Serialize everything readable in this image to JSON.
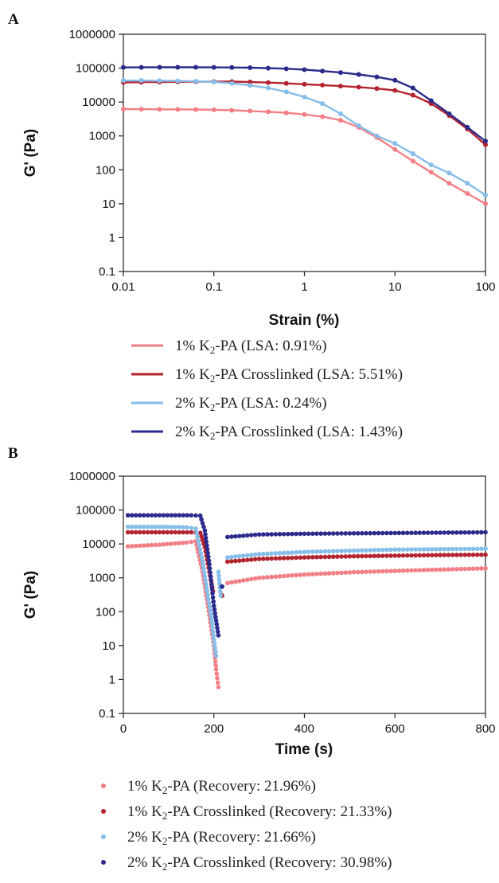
{
  "colors": {
    "s1": "#f27f86",
    "s2": "#b3232e",
    "s3": "#86bde9",
    "s4": "#2b2b8c"
  },
  "chart_data": [
    {
      "panel": "A",
      "type": "line",
      "title": "",
      "xlabel": "Strain (%)",
      "ylabel": "G' (Pa)",
      "xscale": "log",
      "yscale": "log",
      "xlim": [
        0.01,
        100
      ],
      "ylim": [
        0.1,
        1000000
      ],
      "xticks": [
        "0.01",
        "0.1",
        "1",
        "10",
        "100"
      ],
      "yticks": [
        "0.1",
        "1",
        "10",
        "100",
        "1000",
        "10000",
        "100000",
        "1000000"
      ],
      "grid": false,
      "legend_position": "below",
      "series": [
        {
          "key": "s1",
          "legend": {
            "prefix": "1% K",
            "sub": "2",
            "suffix": "-PA (LSA: 0.91%)"
          },
          "x": [
            0.01,
            0.0158,
            0.0251,
            0.0398,
            0.0631,
            0.1,
            0.158,
            0.251,
            0.398,
            0.631,
            1,
            1.58,
            2.51,
            3.98,
            6.31,
            10,
            15.8,
            25.1,
            39.8,
            63.1,
            100
          ],
          "y": [
            6200,
            6150,
            6100,
            6050,
            6000,
            5900,
            5700,
            5450,
            5150,
            4800,
            4300,
            3700,
            2900,
            1800,
            900,
            400,
            180,
            85,
            40,
            20,
            10
          ]
        },
        {
          "key": "s2",
          "legend": {
            "prefix": "1% K",
            "sub": "2",
            "suffix": "-PA Crosslinked (LSA: 5.51%)"
          },
          "x": [
            0.01,
            0.0158,
            0.0251,
            0.0398,
            0.0631,
            0.1,
            0.158,
            0.251,
            0.398,
            0.631,
            1,
            1.58,
            2.51,
            3.98,
            6.31,
            10,
            15.8,
            25.1,
            39.8,
            63.1,
            100
          ],
          "y": [
            38000,
            38500,
            39000,
            39500,
            39800,
            40000,
            40000,
            39000,
            37500,
            35500,
            33500,
            31500,
            29500,
            27500,
            25000,
            22000,
            16000,
            9000,
            4000,
            1600,
            550
          ]
        },
        {
          "key": "s3",
          "legend": {
            "prefix": "2% K",
            "sub": "2",
            "suffix": "-PA (LSA: 0.24%)"
          },
          "x": [
            0.01,
            0.0158,
            0.0251,
            0.0398,
            0.0631,
            0.1,
            0.158,
            0.251,
            0.398,
            0.631,
            1,
            1.58,
            2.51,
            3.98,
            6.31,
            10,
            15.8,
            25.1,
            39.8,
            63.1,
            100
          ],
          "y": [
            43000,
            43000,
            42500,
            42000,
            41000,
            39000,
            35500,
            31000,
            26000,
            20000,
            14000,
            9000,
            4500,
            2000,
            1000,
            600,
            300,
            140,
            80,
            40,
            18
          ]
        },
        {
          "key": "s4",
          "legend": {
            "prefix": "2% K",
            "sub": "2",
            "suffix": "-PA Crosslinked (LSA: 1.43%)"
          },
          "x": [
            0.01,
            0.0158,
            0.0251,
            0.0398,
            0.0631,
            0.1,
            0.158,
            0.251,
            0.398,
            0.631,
            1,
            1.58,
            2.51,
            3.98,
            6.31,
            10,
            15.8,
            25.1,
            39.8,
            63.1,
            100
          ],
          "y": [
            105000,
            105500,
            106000,
            106000,
            106000,
            105500,
            104500,
            103000,
            100000,
            96000,
            90000,
            82000,
            74000,
            65000,
            55000,
            44000,
            26000,
            11000,
            4500,
            1800,
            700
          ]
        }
      ]
    },
    {
      "panel": "B",
      "type": "scatter",
      "title": "",
      "xlabel": "Time (s)",
      "ylabel": "G' (Pa)",
      "xscale": "linear",
      "yscale": "log",
      "xlim": [
        0,
        800
      ],
      "ylim": [
        0.1,
        1000000
      ],
      "xticks": [
        "0",
        "200",
        "400",
        "600",
        "800"
      ],
      "yticks": [
        "0.1",
        "1",
        "10",
        "100",
        "1000",
        "10000",
        "100000",
        "1000000"
      ],
      "grid": false,
      "legend_position": "below",
      "series": [
        {
          "key": "s1",
          "legend": {
            "prefix": "1% K",
            "sub": "2",
            "suffix": "-PA (Recovery: 21.96%)"
          },
          "segments": [
            {
              "x": [
                10,
                80,
                140,
                160
              ],
              "y": [
                8500,
                9500,
                11000,
                12000
              ]
            },
            {
              "x": [
                160,
                175,
                190,
                200,
                205,
                210
              ],
              "y": [
                12000,
                1500,
                80,
                10,
                2,
                0.6
              ]
            },
            {
              "x": [
                230,
                300,
                400,
                500,
                600,
                700,
                800
              ],
              "y": [
                700,
                1000,
                1250,
                1450,
                1600,
                1750,
                1900
              ]
            }
          ]
        },
        {
          "key": "s2",
          "legend": {
            "prefix": "1% K",
            "sub": "2",
            "suffix": "-PA Crosslinked (Recovery: 21.33%)"
          },
          "segments": [
            {
              "x": [
                10,
                80,
                150,
                170
              ],
              "y": [
                22000,
                22000,
                22000,
                21000
              ]
            },
            {
              "x": [
                170,
                180,
                190,
                198
              ],
              "y": [
                21000,
                8000,
                1500,
                400
              ]
            },
            {
              "x": [
                218
              ],
              "y": [
                300
              ]
            },
            {
              "x": [
                230,
                300,
                400,
                500,
                600,
                700,
                800
              ],
              "y": [
                3000,
                3600,
                4000,
                4300,
                4500,
                4700,
                4800
              ]
            }
          ]
        },
        {
          "key": "s3",
          "legend": {
            "prefix": "2% K",
            "sub": "2",
            "suffix": "-PA (Recovery: 21.66%)"
          },
          "segments": [
            {
              "x": [
                10,
                80,
                140,
                160
              ],
              "y": [
                32000,
                32000,
                31000,
                28000
              ]
            },
            {
              "x": [
                160,
                175,
                185,
                195,
                200,
                205
              ],
              "y": [
                28000,
                3000,
                400,
                60,
                15,
                5
              ]
            },
            {
              "x": [
                210,
                215
              ],
              "y": [
                1500,
                300
              ]
            },
            {
              "x": [
                230,
                300,
                400,
                500,
                600,
                700,
                800
              ],
              "y": [
                4000,
                5000,
                5800,
                6300,
                6800,
                7000,
                7200
              ]
            }
          ]
        },
        {
          "key": "s4",
          "legend": {
            "prefix": "2% K",
            "sub": "2",
            "suffix": "-PA Crosslinked (Recovery: 30.98%)"
          },
          "segments": [
            {
              "x": [
                10,
                80,
                150,
                170
              ],
              "y": [
                70000,
                70000,
                70000,
                68000
              ]
            },
            {
              "x": [
                170,
                180,
                190,
                200,
                210
              ],
              "y": [
                68000,
                25000,
                2500,
                150,
                20
              ]
            },
            {
              "x": [
                218
              ],
              "y": [
                550
              ]
            },
            {
              "x": [
                230,
                300,
                400,
                500,
                600,
                700,
                800
              ],
              "y": [
                16000,
                19000,
                20000,
                20500,
                21000,
                21500,
                22000
              ]
            }
          ]
        }
      ]
    }
  ]
}
